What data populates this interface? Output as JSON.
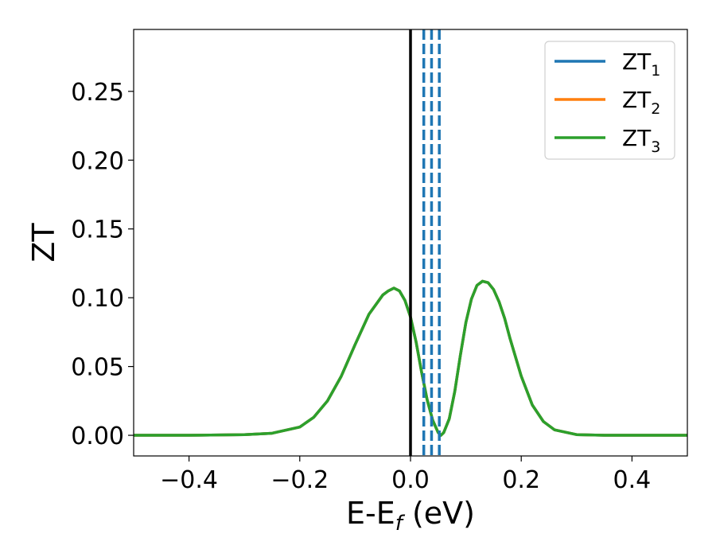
{
  "chart_data": {
    "type": "line",
    "xlabel_main": "E-E",
    "xlabel_sub": "f",
    "xlabel_unit": " (eV)",
    "ylabel": "ZT",
    "xlim": [
      -0.5,
      0.5
    ],
    "ylim": [
      -0.015,
      0.295
    ],
    "xticks": [
      -0.4,
      -0.2,
      0.0,
      0.2,
      0.4
    ],
    "xtick_labels": [
      "−0.4",
      "−0.2",
      "0.0",
      "0.2",
      "0.4"
    ],
    "yticks": [
      0.0,
      0.05,
      0.1,
      0.15,
      0.2,
      0.25
    ],
    "ytick_labels": [
      "0.00",
      "0.05",
      "0.10",
      "0.15",
      "0.20",
      "0.25"
    ],
    "grid": false,
    "legend_position": "top-right",
    "reference_lines": {
      "solid_vertical": {
        "x": 0.0,
        "color": "#000000"
      },
      "dashed_vertical": {
        "x": [
          0.024,
          0.038,
          0.052
        ],
        "color": "#1f77b4"
      }
    },
    "x": [
      -0.5,
      -0.4,
      -0.3,
      -0.25,
      -0.2,
      -0.175,
      -0.15,
      -0.125,
      -0.1,
      -0.075,
      -0.05,
      -0.04,
      -0.03,
      -0.02,
      -0.01,
      0.0,
      0.01,
      0.02,
      0.03,
      0.04,
      0.05,
      0.055,
      0.06,
      0.07,
      0.08,
      0.09,
      0.1,
      0.11,
      0.12,
      0.13,
      0.14,
      0.15,
      0.16,
      0.17,
      0.18,
      0.2,
      0.22,
      0.24,
      0.26,
      0.3,
      0.35,
      0.4,
      0.5
    ],
    "series": [
      {
        "name": "ZT",
        "sub": "1",
        "color": "#1f77b4",
        "values": [
          0.0,
          0.0,
          0.0005,
          0.0015,
          0.006,
          0.013,
          0.025,
          0.043,
          0.066,
          0.088,
          0.102,
          0.105,
          0.107,
          0.105,
          0.098,
          0.086,
          0.068,
          0.046,
          0.026,
          0.011,
          0.002,
          0.0,
          0.002,
          0.012,
          0.032,
          0.058,
          0.082,
          0.099,
          0.109,
          0.112,
          0.111,
          0.106,
          0.097,
          0.085,
          0.07,
          0.043,
          0.022,
          0.01,
          0.004,
          0.0005,
          0.0,
          0.0,
          0.0
        ]
      },
      {
        "name": "ZT",
        "sub": "2",
        "color": "#ff7f0e",
        "values": [
          0.0,
          0.0,
          0.0005,
          0.0015,
          0.006,
          0.013,
          0.025,
          0.043,
          0.066,
          0.088,
          0.102,
          0.105,
          0.107,
          0.105,
          0.098,
          0.086,
          0.068,
          0.046,
          0.026,
          0.011,
          0.002,
          0.0,
          0.002,
          0.012,
          0.032,
          0.058,
          0.082,
          0.099,
          0.109,
          0.112,
          0.111,
          0.106,
          0.097,
          0.085,
          0.07,
          0.043,
          0.022,
          0.01,
          0.004,
          0.0005,
          0.0,
          0.0,
          0.0
        ]
      },
      {
        "name": "ZT",
        "sub": "3",
        "color": "#2ca02c",
        "values": [
          0.0,
          0.0,
          0.0005,
          0.0015,
          0.006,
          0.013,
          0.025,
          0.043,
          0.066,
          0.088,
          0.102,
          0.105,
          0.107,
          0.105,
          0.098,
          0.086,
          0.068,
          0.046,
          0.026,
          0.011,
          0.002,
          0.0,
          0.002,
          0.012,
          0.032,
          0.058,
          0.082,
          0.099,
          0.109,
          0.112,
          0.111,
          0.106,
          0.097,
          0.085,
          0.07,
          0.043,
          0.022,
          0.01,
          0.004,
          0.0005,
          0.0,
          0.0,
          0.0
        ]
      }
    ]
  }
}
